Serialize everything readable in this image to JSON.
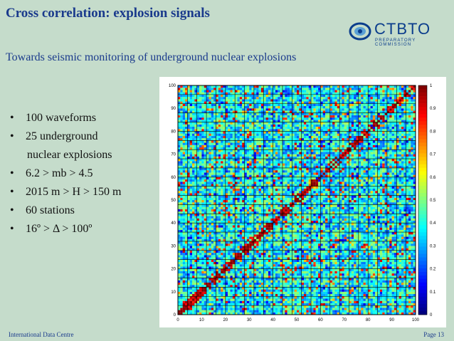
{
  "title": "Cross correlation: explosion signals",
  "subtitle": "Towards seismic monitoring of underground nuclear explosions",
  "logo": {
    "name": "CTBTO",
    "tagline": "PREPARATORY COMMISSION",
    "colors": {
      "primary": "#0b3d8c",
      "accent": "#5aa0d6"
    }
  },
  "bullets": [
    {
      "text": "100 waveforms",
      "bullet": true
    },
    {
      "text": "25 underground",
      "bullet": true
    },
    {
      "text": "nuclear explosions",
      "bullet": false
    },
    {
      "text": "6.2 > mb > 4.5",
      "bullet": true
    },
    {
      "text": "2015 m > H > 150 m",
      "bullet": true
    },
    {
      "text": "60 stations",
      "bullet": true
    },
    {
      "text": "16º > Δ  > 100º",
      "bullet": true
    }
  ],
  "footer": {
    "left": "International Data Centre",
    "right": "Page 13"
  },
  "chart_data": {
    "type": "heatmap",
    "x_ticks": [
      "0",
      "10",
      "20",
      "30",
      "40",
      "50",
      "60",
      "70",
      "80",
      "90",
      "100"
    ],
    "y_ticks": [
      "0",
      "10",
      "20",
      "30",
      "40",
      "50",
      "60",
      "70",
      "80",
      "90",
      "100"
    ],
    "xlim": [
      0,
      100
    ],
    "ylim": [
      0,
      100
    ],
    "colorbar_ticks": [
      "1",
      "0.9",
      "0.8",
      "0.7",
      "0.6",
      "0.5",
      "0.4",
      "0.3",
      "0.2",
      "0.1",
      "0"
    ],
    "colorbar_range": [
      0,
      1
    ],
    "colormap": "jet",
    "grid_every": 4,
    "diagonal_value": 1
  }
}
